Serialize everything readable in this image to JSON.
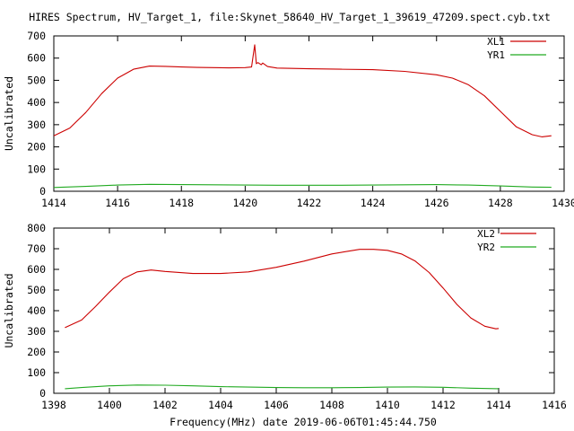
{
  "title": "HIRES Spectrum, HV_Target_1, file:Skynet_58640_HV_Target_1_39619_47209.spect.cyb.txt",
  "xlabel": "Frequency(MHz) date 2019-06-06T01:45:44.750",
  "colors": {
    "x_series": "#cc0000",
    "y_series": "#22aa22",
    "axis": "#000000"
  },
  "chart_data": [
    {
      "type": "line",
      "ylabel": "Uncalibrated",
      "xlim": [
        1414,
        1430
      ],
      "ylim": [
        0,
        700
      ],
      "xticks": [
        1414,
        1416,
        1418,
        1420,
        1422,
        1424,
        1426,
        1428,
        1430
      ],
      "yticks": [
        0,
        100,
        200,
        300,
        400,
        500,
        600,
        700
      ],
      "legend_position": "top-right",
      "grid": false,
      "series": [
        {
          "name": "XL1",
          "color": "#cc0000",
          "x": [
            1414.0,
            1414.5,
            1415.0,
            1415.5,
            1416.0,
            1416.5,
            1417.0,
            1417.5,
            1418.0,
            1418.5,
            1419.0,
            1419.5,
            1420.0,
            1420.2,
            1420.3,
            1420.35,
            1420.4,
            1420.5,
            1420.55,
            1420.7,
            1421.0,
            1422.0,
            1423.0,
            1424.0,
            1425.0,
            1426.0,
            1426.5,
            1427.0,
            1427.5,
            1428.0,
            1428.5,
            1429.0,
            1429.3,
            1429.6
          ],
          "values": [
            250,
            285,
            355,
            440,
            510,
            550,
            564,
            563,
            560,
            558,
            557,
            556,
            557,
            560,
            660,
            575,
            580,
            570,
            578,
            562,
            555,
            552,
            550,
            548,
            540,
            525,
            510,
            480,
            430,
            360,
            290,
            255,
            245,
            250
          ]
        },
        {
          "name": "YR1",
          "color": "#22aa22",
          "x": [
            1414.0,
            1415.0,
            1416.0,
            1417.0,
            1418.0,
            1419.0,
            1420.0,
            1421.0,
            1422.0,
            1423.0,
            1424.0,
            1425.0,
            1426.0,
            1427.0,
            1428.0,
            1429.0,
            1429.6
          ],
          "values": [
            17,
            22,
            28,
            31,
            30,
            29,
            28,
            27,
            27,
            27,
            28,
            29,
            30,
            28,
            24,
            19,
            18
          ]
        }
      ]
    },
    {
      "type": "line",
      "ylabel": "Uncalibrated",
      "xlim": [
        1398,
        1416
      ],
      "ylim": [
        0,
        800
      ],
      "xticks": [
        1398,
        1400,
        1402,
        1404,
        1406,
        1408,
        1410,
        1412,
        1414,
        1416
      ],
      "yticks": [
        0,
        100,
        200,
        300,
        400,
        500,
        600,
        700,
        800
      ],
      "legend_position": "top-right",
      "grid": false,
      "series": [
        {
          "name": "XL2",
          "color": "#cc0000",
          "x": [
            1398.4,
            1399.0,
            1399.5,
            1400.0,
            1400.5,
            1401.0,
            1401.5,
            1402.0,
            1403.0,
            1404.0,
            1405.0,
            1406.0,
            1407.0,
            1408.0,
            1409.0,
            1409.5,
            1410.0,
            1410.5,
            1411.0,
            1411.5,
            1412.0,
            1412.5,
            1413.0,
            1413.5,
            1413.9,
            1414.0
          ],
          "values": [
            318,
            355,
            420,
            490,
            555,
            588,
            597,
            590,
            580,
            580,
            588,
            610,
            640,
            675,
            697,
            697,
            692,
            675,
            640,
            585,
            510,
            430,
            365,
            325,
            312,
            314
          ]
        },
        {
          "name": "YR2",
          "color": "#22aa22",
          "x": [
            1398.4,
            1399.0,
            1400.0,
            1401.0,
            1402.0,
            1403.0,
            1404.0,
            1405.0,
            1406.0,
            1407.0,
            1408.0,
            1409.0,
            1410.0,
            1411.0,
            1412.0,
            1413.0,
            1414.0
          ],
          "values": [
            22,
            28,
            36,
            40,
            39,
            36,
            32,
            30,
            28,
            27,
            27,
            28,
            30,
            31,
            29,
            25,
            22
          ]
        }
      ]
    }
  ]
}
